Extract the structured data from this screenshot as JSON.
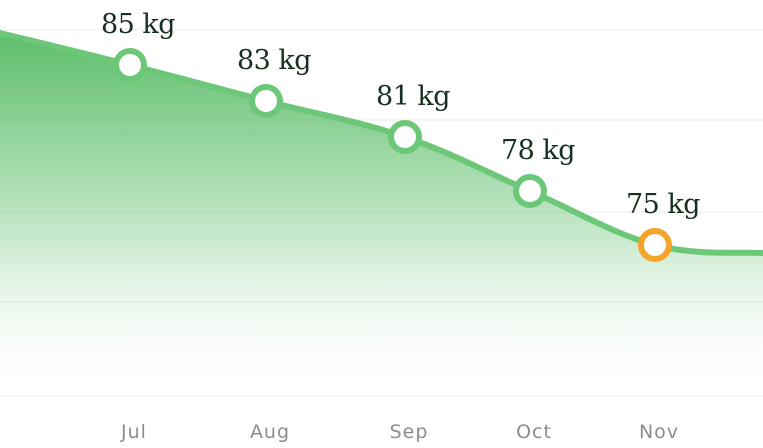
{
  "colors": {
    "line": "#6cc878",
    "fill_top": "#5dbe6a",
    "fill_bottom": "#ffffff",
    "marker_fill": "#ffffff",
    "marker_default": "#6cc878",
    "marker_highlight": "#f2a52a",
    "label_text": "#17301f",
    "tick_text": "#8d8d8d",
    "grid": "#ececec"
  },
  "chart_data": {
    "type": "area",
    "title": "",
    "xlabel": "",
    "ylabel": "",
    "unit": "kg",
    "categories": [
      "Jul",
      "Aug",
      "Sep",
      "Oct",
      "Nov"
    ],
    "values": [
      85,
      83,
      81,
      78,
      75
    ],
    "labels": [
      "85 kg",
      "83 kg",
      "81 kg",
      "78 kg",
      "75 kg"
    ],
    "highlight_index": 4,
    "grid": true,
    "legend": "none"
  }
}
